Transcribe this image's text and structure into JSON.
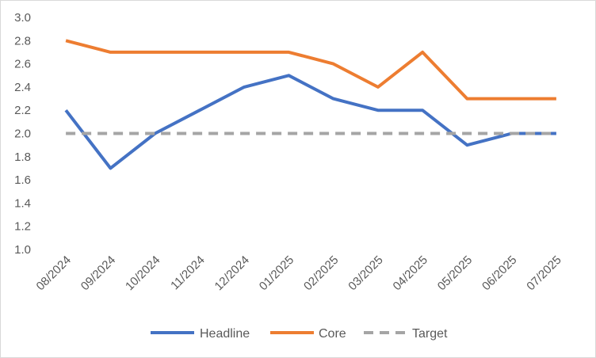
{
  "chart_data": {
    "type": "line",
    "categories": [
      "08/2024",
      "09/2024",
      "10/2024",
      "11/2024",
      "12/2024",
      "01/2025",
      "02/2025",
      "03/2025",
      "04/2025",
      "05/2025",
      "06/2025",
      "07/2025"
    ],
    "series": [
      {
        "name": "Headline",
        "values": [
          2.2,
          1.7,
          2.0,
          2.2,
          2.4,
          2.5,
          2.3,
          2.2,
          2.2,
          1.9,
          2.0,
          2.0
        ],
        "color": "#4472C4",
        "style": "solid"
      },
      {
        "name": "Core",
        "values": [
          2.8,
          2.7,
          2.7,
          2.7,
          2.7,
          2.7,
          2.6,
          2.4,
          2.7,
          2.3,
          2.3,
          2.3
        ],
        "color": "#ED7D31",
        "style": "solid"
      },
      {
        "name": "Target",
        "values": [
          2.0,
          2.0,
          2.0,
          2.0,
          2.0,
          2.0,
          2.0,
          2.0,
          2.0,
          2.0,
          2.0,
          2.0
        ],
        "color": "#A5A5A5",
        "style": "dashed"
      }
    ],
    "ylim": [
      1.0,
      3.0
    ],
    "yticks": [
      "1.0",
      "1.2",
      "1.4",
      "1.6",
      "1.8",
      "2.0",
      "2.2",
      "2.4",
      "2.6",
      "2.8",
      "3.0"
    ],
    "grid": false,
    "legend": "bottom",
    "title": "",
    "xlabel": "",
    "ylabel": ""
  }
}
